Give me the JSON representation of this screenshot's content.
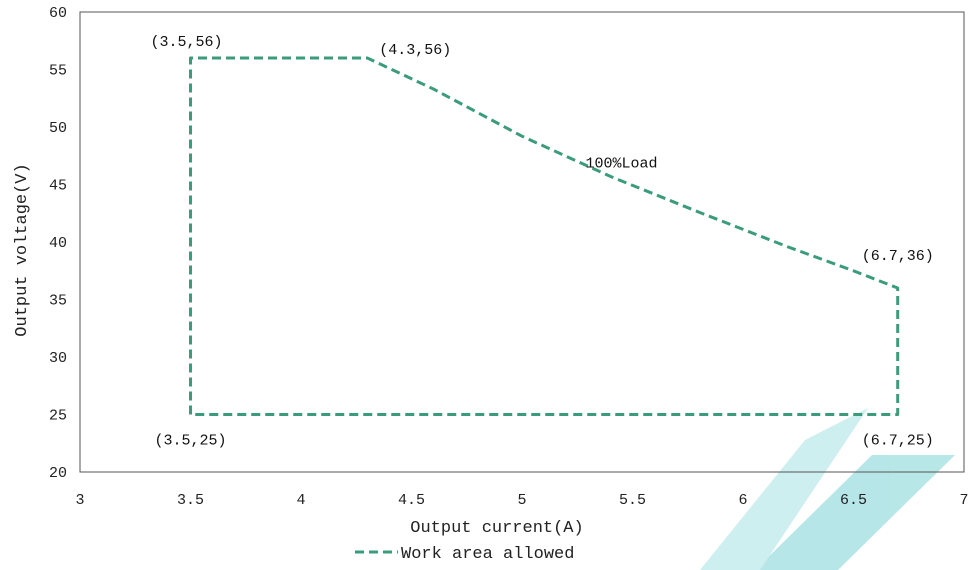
{
  "colors": {
    "series": "#3a9c7a",
    "axis": "#555555",
    "watermark": "#7ed3d6"
  },
  "chart_data": {
    "type": "line",
    "title": "",
    "xlabel": "Output current(A)",
    "ylabel": "Output voltage(V)",
    "xlim": [
      3,
      7
    ],
    "ylim": [
      20,
      60
    ],
    "x_ticks": [
      3,
      3.5,
      4,
      4.5,
      5,
      5.5,
      6,
      6.5,
      7
    ],
    "x_tick_labels": [
      "3",
      "3.5",
      "4",
      "4.5",
      "5",
      "5.5",
      "6",
      "6.5",
      "7"
    ],
    "y_ticks": [
      20,
      25,
      30,
      35,
      40,
      45,
      50,
      55,
      60
    ],
    "y_tick_labels": [
      "20",
      "25",
      "30",
      "35",
      "40",
      "45",
      "50",
      "55",
      "60"
    ],
    "grid": false,
    "legend_position": "bottom",
    "series": [
      {
        "name": "Work area allowed",
        "style": "dashed",
        "x": [
          3.5,
          3.5,
          4.3,
          4.6,
          5.0,
          5.4,
          5.8,
          6.2,
          6.5,
          6.7,
          6.7,
          3.5
        ],
        "y": [
          25,
          56,
          56,
          53.3,
          49.2,
          45.7,
          42.6,
          39.6,
          37.5,
          36,
          25,
          25
        ]
      }
    ],
    "annotations": [
      {
        "text": "(3.5,56)",
        "x": 3.5,
        "y": 56,
        "anchor": "above-left"
      },
      {
        "text": "(4.3,56)",
        "x": 4.3,
        "y": 56,
        "anchor": "above-right"
      },
      {
        "text": "100%Load",
        "x": 5.45,
        "y": 46.5,
        "anchor": "center"
      },
      {
        "text": "(6.7,36)",
        "x": 6.7,
        "y": 36,
        "anchor": "above"
      },
      {
        "text": "(3.5,25)",
        "x": 3.5,
        "y": 25,
        "anchor": "below"
      },
      {
        "text": "(6.7,25)",
        "x": 6.7,
        "y": 25,
        "anchor": "below"
      }
    ]
  }
}
